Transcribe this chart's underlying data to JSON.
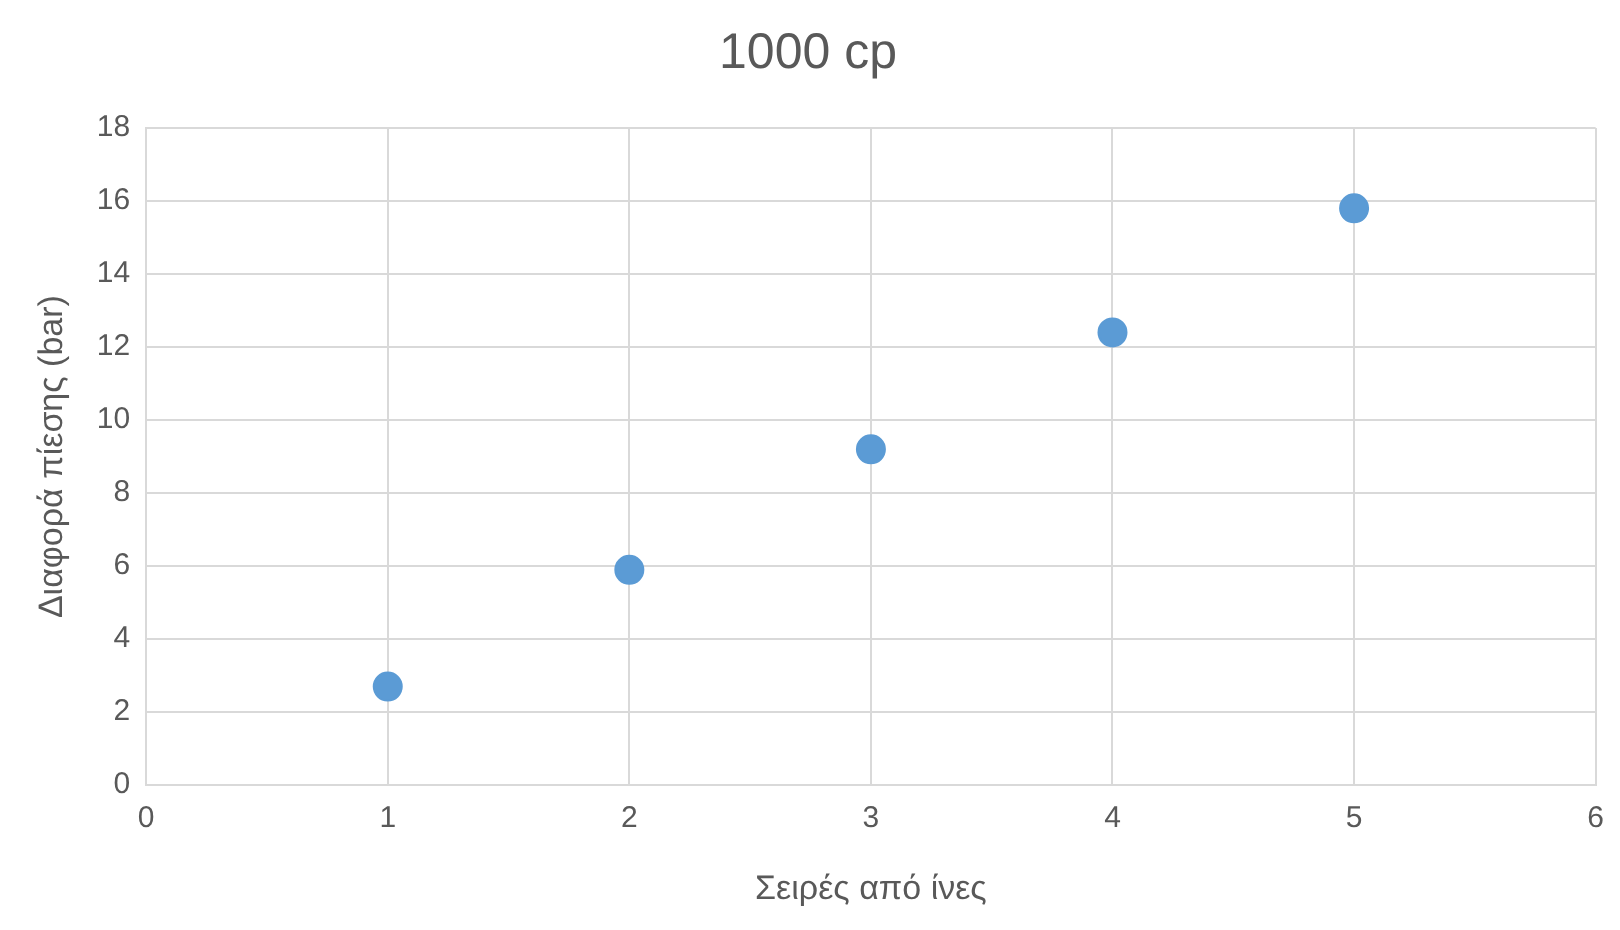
{
  "chart_data": {
    "type": "scatter",
    "title": "1000 cp",
    "xlabel": "Σειρές από ίνες",
    "ylabel": "Διαφορά πίεσης (bar)",
    "x": [
      1,
      2,
      3,
      4,
      5
    ],
    "series": [
      {
        "color": "#5b9bd5",
        "values": [
          2.7,
          5.9,
          9.2,
          12.4,
          15.8
        ]
      }
    ],
    "xlim": [
      0,
      6
    ],
    "xticks": [
      0,
      1,
      2,
      3,
      4,
      5,
      6
    ],
    "ylim": [
      0,
      18
    ],
    "yticks": [
      0,
      2,
      4,
      6,
      8,
      10,
      12,
      14,
      16,
      18
    ],
    "grid": true,
    "marker": "circle",
    "legend": false
  }
}
